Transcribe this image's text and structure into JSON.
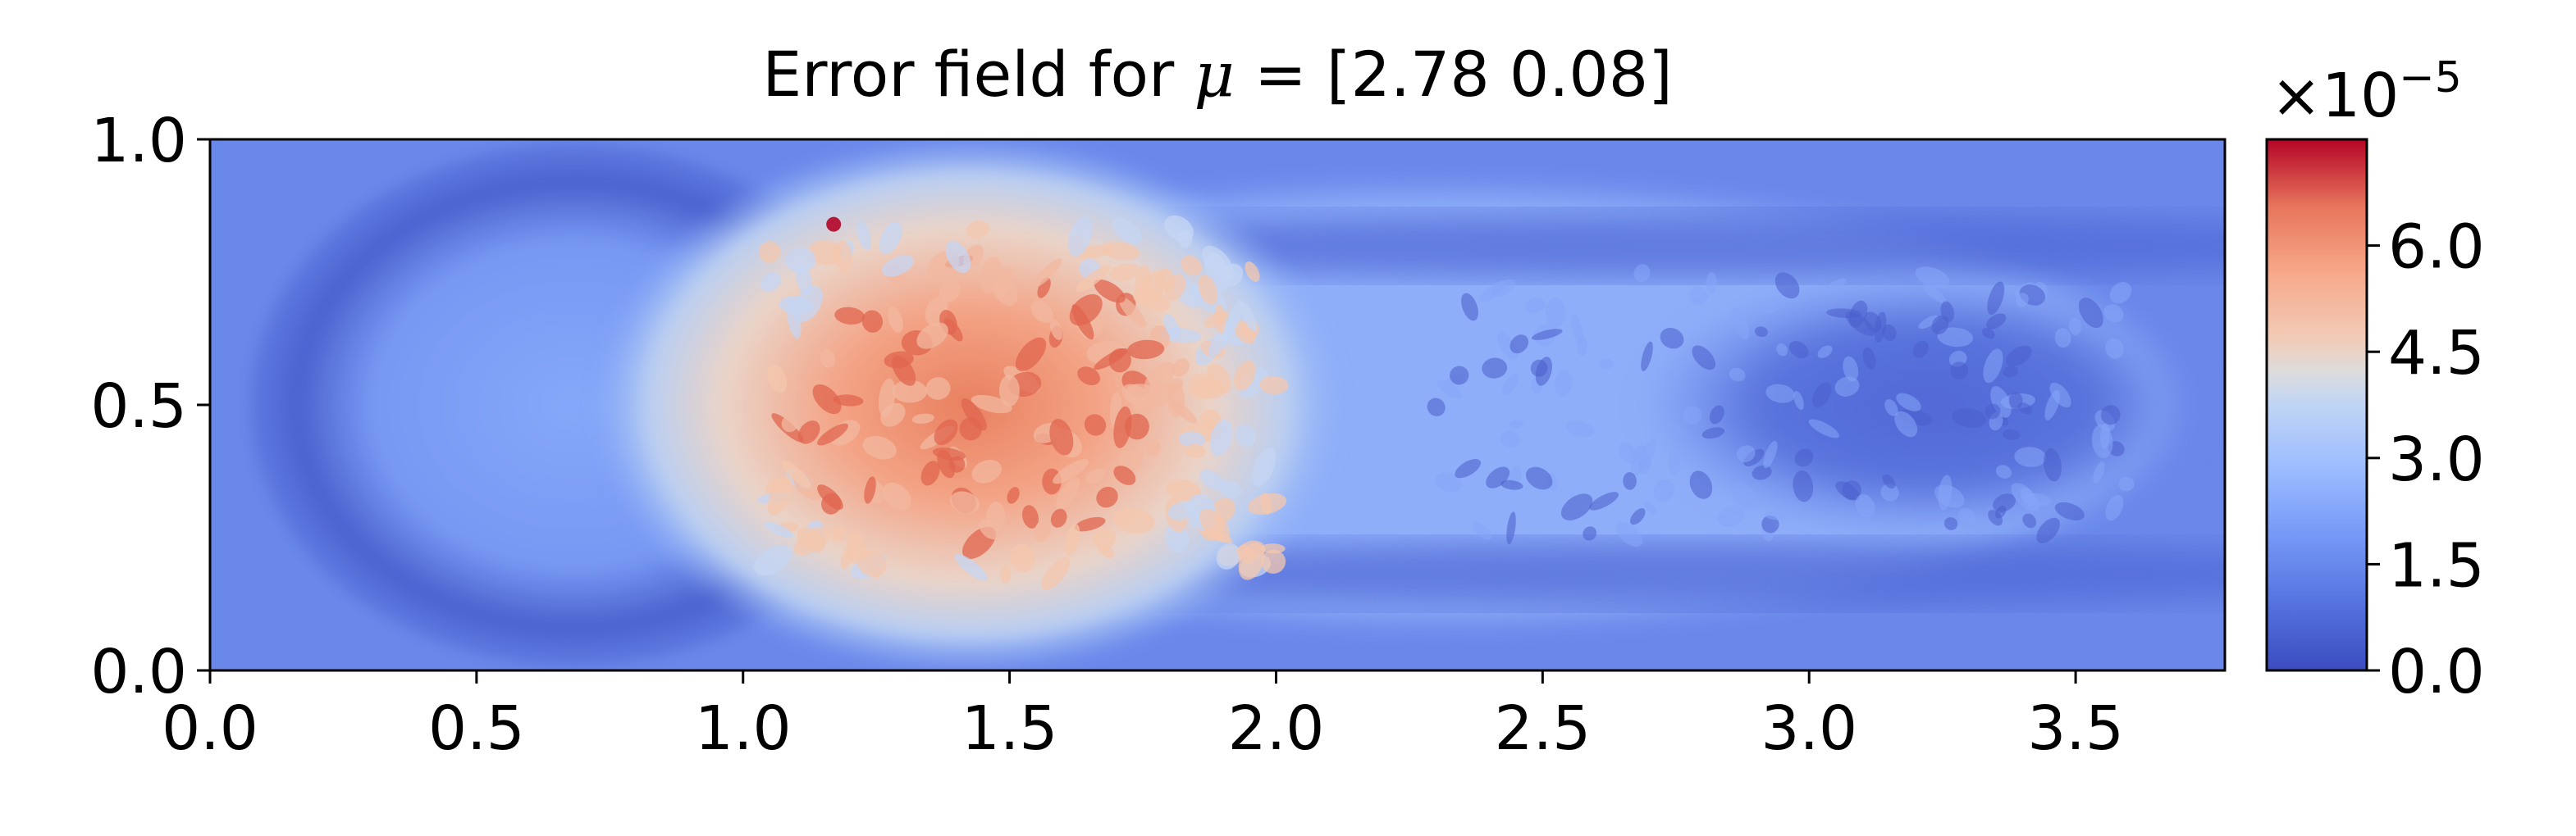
{
  "chart_data": {
    "type": "heatmap",
    "title": {
      "prefix": "Error field for ",
      "symbol": "μ",
      "suffix": " = [2.78 0.08]"
    },
    "xlabel": "",
    "ylabel": "",
    "xlim": [
      0.0,
      3.78
    ],
    "ylim": [
      0.0,
      1.0
    ],
    "x_ticks": [
      0.0,
      0.5,
      1.0,
      1.5,
      2.0,
      2.5,
      3.0,
      3.5
    ],
    "x_tick_labels": [
      "0.0",
      "0.5",
      "1.0",
      "1.5",
      "2.0",
      "2.5",
      "3.0",
      "3.5"
    ],
    "y_ticks": [
      0.0,
      0.5,
      1.0
    ],
    "y_tick_labels": [
      "0.0",
      "0.5",
      "1.0"
    ],
    "colormap": "coolwarm",
    "colorbar": {
      "min": 0.0,
      "max": 7.5e-05,
      "ticks": [
        0.0,
        1.5e-05,
        3e-05,
        4.5e-05,
        6e-05
      ],
      "tick_labels": [
        "0.0",
        "1.5",
        "3.0",
        "4.5",
        "6.0"
      ],
      "scale_base": "×10",
      "scale_exponent": "−5"
    },
    "field_description_values": {
      "background": 1e-05,
      "left_ring_min": 3e-06,
      "hot_spot_center": [
        1.45,
        0.5
      ],
      "hot_spot_peak": 6.5e-05,
      "discontinuity_x": 1.0
    },
    "grid": false
  },
  "colors": {
    "cold": "#3b4cc0",
    "neutral": "#dddddd",
    "hot": "#b40426"
  }
}
